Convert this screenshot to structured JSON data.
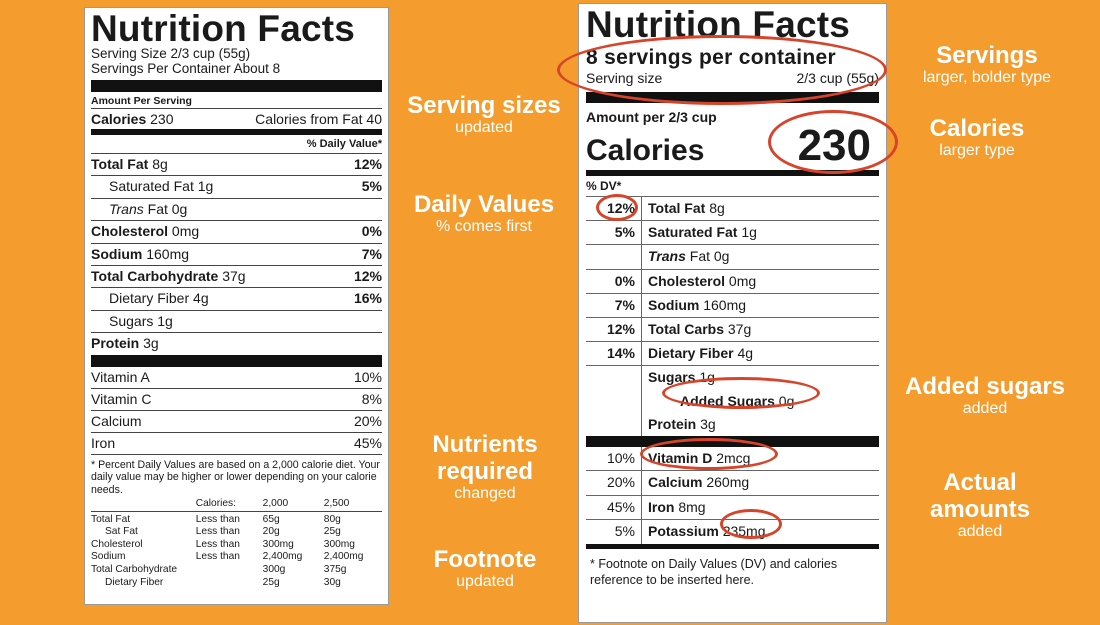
{
  "old_label": {
    "title": "Nutrition Facts",
    "serving_size": "Serving Size 2/3 cup (55g)",
    "servings_per_container": "Servings Per Container About 8",
    "amount_per_serving": "Amount Per Serving",
    "calories_label": "Calories",
    "calories_value": "230",
    "calories_from_fat": "Calories from Fat 40",
    "daily_value_header": "% Daily Value*",
    "nutrients": [
      {
        "name": "Total Fat",
        "amount": "8g",
        "pct": "12%"
      },
      {
        "name": "Saturated Fat",
        "amount": "1g",
        "pct": "5%"
      },
      {
        "name": "Trans",
        "amount": "Fat 0g",
        "pct": ""
      },
      {
        "name": "Cholesterol",
        "amount": "0mg",
        "pct": "0%"
      },
      {
        "name": "Sodium",
        "amount": "160mg",
        "pct": "7%"
      },
      {
        "name": "Total Carbohydrate",
        "amount": "37g",
        "pct": "12%"
      },
      {
        "name": "Dietary Fiber",
        "amount": "4g",
        "pct": "16%"
      },
      {
        "name": "Sugars",
        "amount": "1g",
        "pct": ""
      },
      {
        "name": "Protein",
        "amount": "3g",
        "pct": ""
      }
    ],
    "vitamins": [
      {
        "name": "Vitamin A",
        "pct": "10%"
      },
      {
        "name": "Vitamin C",
        "pct": "8%"
      },
      {
        "name": "Calcium",
        "pct": "20%"
      },
      {
        "name": "Iron",
        "pct": "45%"
      }
    ],
    "footnote": "* Percent Daily Values are based on a 2,000 calorie diet. Your daily value may be higher or lower depending on your calorie needs.",
    "footnote_table": {
      "header": [
        "",
        "Calories:",
        "2,000",
        "2,500"
      ],
      "rows": [
        [
          "Total Fat",
          "Less than",
          "65g",
          "80g"
        ],
        [
          "Sat Fat",
          "Less than",
          "20g",
          "25g"
        ],
        [
          "Cholesterol",
          "Less than",
          "300mg",
          "300mg"
        ],
        [
          "Sodium",
          "Less than",
          "2,400mg",
          "2,400mg"
        ],
        [
          "Total Carbohydrate",
          "",
          "300g",
          "375g"
        ],
        [
          "Dietary Fiber",
          "",
          "25g",
          "30g"
        ]
      ]
    }
  },
  "new_label": {
    "title": "Nutrition Facts",
    "servings": "8 servings per container",
    "serving_size_label": "Serving size",
    "serving_size_value": "2/3 cup (55g)",
    "amount_per": "Amount per 2/3 cup",
    "calories_label": "Calories",
    "calories_value": "230",
    "dv_header": "% DV*",
    "nutrients": [
      {
        "pct": "12%",
        "name": "Total Fat",
        "amount": "8g"
      },
      {
        "pct": "5%",
        "name": "Saturated Fat",
        "amount": "1g"
      },
      {
        "pct": "",
        "name": "Trans",
        "amount": "Fat 0g"
      },
      {
        "pct": "0%",
        "name": "Cholesterol",
        "amount": "0mg"
      },
      {
        "pct": "7%",
        "name": "Sodium",
        "amount": "160mg"
      },
      {
        "pct": "12%",
        "name": "Total Carbs",
        "amount": "37g"
      },
      {
        "pct": "14%",
        "name": "Dietary Fiber",
        "amount": "4g"
      },
      {
        "pct": "",
        "name": "Sugars",
        "amount": "1g"
      },
      {
        "pct": "",
        "name": "Added Sugars",
        "amount": "0g"
      },
      {
        "pct": "",
        "name": "Protein",
        "amount": "3g"
      }
    ],
    "vitamins": [
      {
        "pct": "10%",
        "name": "Vitamin D",
        "amount": "2mcg"
      },
      {
        "pct": "20%",
        "name": "Calcium",
        "amount": "260mg"
      },
      {
        "pct": "45%",
        "name": "Iron",
        "amount": "8mg"
      },
      {
        "pct": "5%",
        "name": "Potassium",
        "amount": "235mg"
      }
    ],
    "footnote": "* Footnote on Daily Values (DV) and calories reference to be inserted here."
  },
  "annotations": {
    "serving_sizes": {
      "title": "Serving sizes",
      "sub": "updated"
    },
    "daily_values": {
      "title": "Daily Values",
      "sub": "% comes first"
    },
    "nutrients_required": {
      "title": "Nutrients required",
      "sub": "changed"
    },
    "footnote": {
      "title": "Footnote",
      "sub": "updated"
    },
    "servings": {
      "title": "Servings",
      "sub": "larger, bolder type"
    },
    "calories": {
      "title": "Calories",
      "sub": "larger type"
    },
    "added_sugars": {
      "title": "Added sugars",
      "sub": "added"
    },
    "actual_amounts": {
      "title": "Actual amounts",
      "sub": "added"
    }
  },
  "colors": {
    "background": "#f49c2e",
    "highlight_ring": "#d6452b",
    "annotation_text": "#ffffff"
  }
}
